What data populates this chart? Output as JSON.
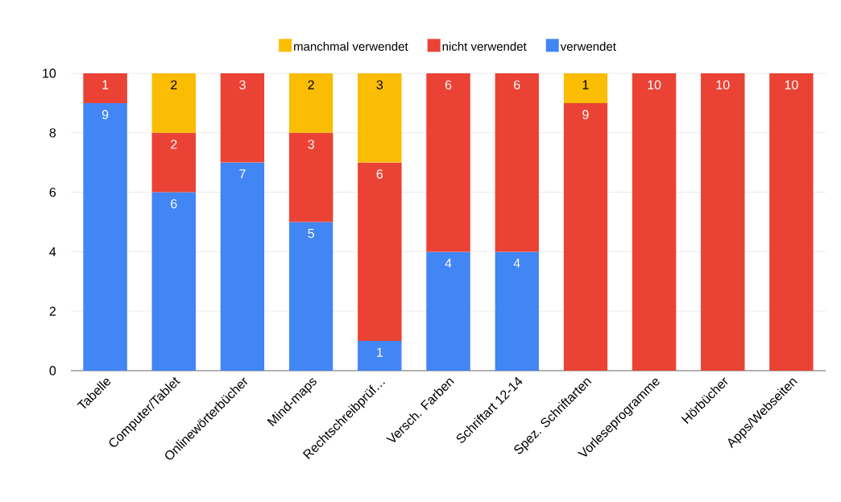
{
  "chart_data": {
    "type": "bar",
    "stacked": true,
    "categories": [
      "Tabelle",
      "Computer/Tablet",
      "Onlinewörterbücher",
      "Mind-maps",
      "Rechtschreibprüf…",
      "Versch. Farben",
      "Schriftart 12-14",
      "Spez. Schriftarten",
      "Vorleseprogramme",
      "Hörbücher",
      "Apps/Webseiten"
    ],
    "series": [
      {
        "name": "verwendet",
        "color": "#4285f4",
        "values": [
          9,
          6,
          7,
          5,
          1,
          4,
          4,
          null,
          null,
          null,
          null
        ]
      },
      {
        "name": "nicht verwendet",
        "color": "#ea4335",
        "values": [
          1,
          2,
          3,
          3,
          6,
          6,
          6,
          9,
          10,
          10,
          10
        ]
      },
      {
        "name": "manchmal verwendet",
        "color": "#fbbc04",
        "values": [
          null,
          2,
          null,
          2,
          3,
          null,
          null,
          1,
          null,
          null,
          null
        ]
      }
    ],
    "ylim": [
      0,
      10
    ],
    "yticks": [
      0,
      2,
      4,
      6,
      8,
      10
    ],
    "grid": "y",
    "legend": "top",
    "data_labels": true
  }
}
